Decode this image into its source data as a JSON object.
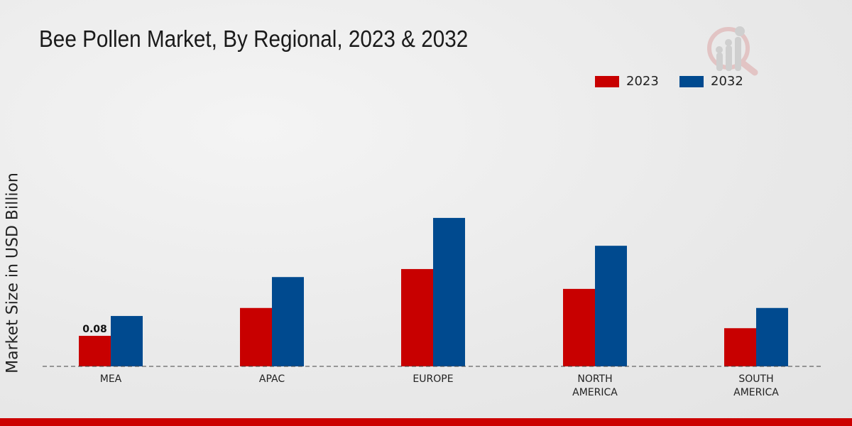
{
  "chart_data": {
    "type": "bar",
    "title": "Bee Pollen Market, By Regional, 2023 & 2032",
    "xlabel": "",
    "ylabel": "Market Size in USD Billion",
    "categories": [
      "MEA",
      "APAC",
      "EUROPE",
      "NORTH AMERICA",
      "SOUTH AMERICA"
    ],
    "category_lines": [
      [
        "MEA"
      ],
      [
        "APAC"
      ],
      [
        "EUROPE"
      ],
      [
        "NORTH",
        "AMERICA"
      ],
      [
        "SOUTH",
        "AMERICA"
      ]
    ],
    "series": [
      {
        "name": "2023",
        "color": "#c80000",
        "values": [
          0.08,
          0.153,
          0.255,
          0.203,
          0.1
        ]
      },
      {
        "name": "2032",
        "color": "#004a8f",
        "values": [
          0.132,
          0.234,
          0.389,
          0.316,
          0.153
        ]
      }
    ],
    "data_labels": [
      {
        "series": 0,
        "index": 0,
        "text": "0.08"
      }
    ],
    "ylim": [
      0,
      0.5
    ],
    "grid": false,
    "legend_position": "top-right"
  }
}
